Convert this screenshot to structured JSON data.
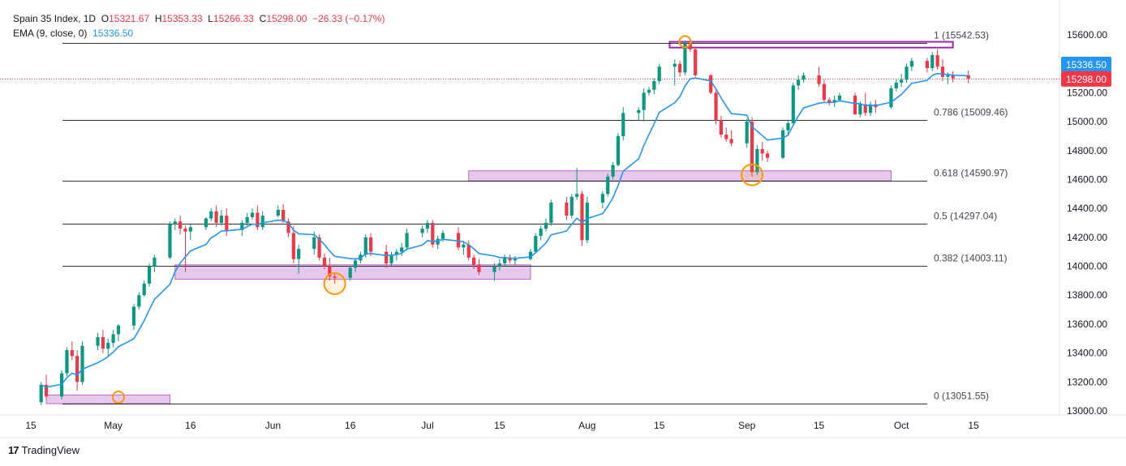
{
  "header": {
    "symbol": "Spain 35 Index, 1D",
    "o_label": "O",
    "o_value": "15321.67",
    "h_label": "H",
    "h_value": "15353.33",
    "l_label": "L",
    "l_value": "15266.33",
    "c_label": "C",
    "c_value": "15298.00",
    "change": "−26.33 (−0.17%)",
    "ema_label": "EMA (9, close, 0)",
    "ema_value": "15336.50"
  },
  "brand": {
    "logo": "17",
    "name": "TradingView"
  },
  "colors": {
    "up": "#089981",
    "down": "#f23645",
    "ema": "#2196f3",
    "fib_line": "#000000",
    "zone_fill": "#e1bee7",
    "zone_stroke": "#ba68c8",
    "top_zone_stroke": "#9c27b0",
    "circle": "#ff9800",
    "price_line": "#f23645"
  },
  "chart_data": {
    "type": "candlestick",
    "title": "Spain 35 Index, 1D",
    "ylim": [
      12960,
      15700
    ],
    "y_ticks": [
      13000,
      13200,
      13400,
      13600,
      13800,
      14000,
      14200,
      14400,
      14600,
      14800,
      15000,
      15200,
      15400,
      15600
    ],
    "x_ticks": [
      {
        "label": "15",
        "day": 0
      },
      {
        "label": "May",
        "day": 16
      },
      {
        "label": "16",
        "day": 31
      },
      {
        "label": "Jun",
        "day": 47
      },
      {
        "label": "16",
        "day": 62
      },
      {
        "label": "Jul",
        "day": 77
      },
      {
        "label": "15",
        "day": 91
      },
      {
        "label": "Aug",
        "day": 108
      },
      {
        "label": "15",
        "day": 122
      },
      {
        "label": "Sep",
        "day": 139
      },
      {
        "label": "15",
        "day": 153
      },
      {
        "label": "Oct",
        "day": 169
      },
      {
        "label": "15",
        "day": 183
      }
    ],
    "fib_levels": [
      {
        "label": "1 (15542.53)",
        "value": 15542.53
      },
      {
        "label": "0.786 (15009.46)",
        "value": 15009.46
      },
      {
        "label": "0.618 (14590.97)",
        "value": 14590.97
      },
      {
        "label": "0.5 (14297.04)",
        "value": 14297.04
      },
      {
        "label": "0.382 (14003.11)",
        "value": 14003.11
      },
      {
        "label": "0 (13051.55)",
        "value": 13051.55
      }
    ],
    "zones": [
      {
        "day_start": 3,
        "day_end": 27,
        "low": 13050,
        "high": 13110
      },
      {
        "day_start": 28,
        "day_end": 97,
        "low": 13910,
        "high": 14010
      },
      {
        "day_start": 85,
        "day_end": 167,
        "low": 14590,
        "high": 14660
      },
      {
        "day_start": 124,
        "day_end": 179,
        "low": 15512,
        "high": 15552
      }
    ],
    "circles": [
      {
        "day": 17,
        "value": 13095,
        "size": "small"
      },
      {
        "day": 59,
        "value": 13880,
        "size": "large"
      },
      {
        "day": 127,
        "value": 15553,
        "size": "small"
      },
      {
        "day": 140,
        "value": 14632,
        "size": "large"
      }
    ],
    "last_price": 15298.0,
    "last_price_label": "15298.00",
    "ema_last_label": "15336.50",
    "candles": [
      [
        2,
        13060,
        13200,
        13040,
        13180
      ],
      [
        3,
        13180,
        13250,
        13080,
        13100
      ],
      [
        6,
        13100,
        13280,
        13080,
        13260
      ],
      [
        7,
        13260,
        13440,
        13240,
        13420
      ],
      [
        8,
        13420,
        13480,
        13350,
        13380
      ],
      [
        9,
        13380,
        13420,
        13140,
        13200
      ],
      [
        10,
        13200,
        13480,
        13180,
        13450
      ],
      [
        13,
        13450,
        13540,
        13420,
        13510
      ],
      [
        14,
        13510,
        13560,
        13400,
        13430
      ],
      [
        15,
        13430,
        13500,
        13380,
        13470
      ],
      [
        16,
        13470,
        13560,
        13440,
        13530
      ],
      [
        17,
        13530,
        13600,
        13480,
        13590
      ],
      [
        20,
        13590,
        13740,
        13560,
        13720
      ],
      [
        21,
        13720,
        13820,
        13700,
        13800
      ],
      [
        22,
        13800,
        13900,
        13790,
        13880
      ],
      [
        23,
        13880,
        14020,
        13860,
        14000
      ],
      [
        24,
        14000,
        14080,
        13960,
        14060
      ],
      [
        27,
        14060,
        14310,
        14050,
        14290
      ],
      [
        28,
        14290,
        14330,
        14250,
        14310
      ],
      [
        29,
        14310,
        14350,
        14220,
        14260
      ],
      [
        30,
        14260,
        14280,
        13960,
        14240
      ],
      [
        31,
        14240,
        14290,
        14180,
        14270
      ],
      [
        34,
        14270,
        14340,
        14250,
        14330
      ],
      [
        35,
        14330,
        14400,
        14310,
        14380
      ],
      [
        36,
        14380,
        14420,
        14270,
        14300
      ],
      [
        37,
        14300,
        14390,
        14280,
        14350
      ],
      [
        38,
        14350,
        14400,
        14210,
        14250
      ],
      [
        41,
        14250,
        14320,
        14210,
        14300
      ],
      [
        42,
        14300,
        14370,
        14280,
        14340
      ],
      [
        43,
        14340,
        14400,
        14320,
        14370
      ],
      [
        44,
        14370,
        14420,
        14250,
        14270
      ],
      [
        45,
        14270,
        14380,
        14250,
        14350
      ],
      [
        48,
        14350,
        14420,
        14340,
        14390
      ],
      [
        49,
        14390,
        14430,
        14300,
        14310
      ],
      [
        50,
        14310,
        14330,
        14200,
        14230
      ],
      [
        51,
        14230,
        14280,
        14020,
        14050
      ],
      [
        52,
        14050,
        14150,
        13950,
        14120
      ],
      [
        55,
        14120,
        14240,
        14080,
        14200
      ],
      [
        56,
        14200,
        14220,
        14040,
        14060
      ],
      [
        57,
        14060,
        14090,
        13980,
        14000
      ],
      [
        58,
        14000,
        14060,
        13900,
        13930
      ],
      [
        59,
        13930,
        13950,
        13880,
        13920
      ],
      [
        62,
        13920,
        14000,
        13900,
        13990
      ],
      [
        63,
        13990,
        14060,
        13960,
        14040
      ],
      [
        64,
        14040,
        14100,
        14020,
        14080
      ],
      [
        65,
        14080,
        14220,
        14060,
        14200
      ],
      [
        66,
        14200,
        14230,
        14070,
        14100
      ],
      [
        69,
        14100,
        14150,
        13990,
        14020
      ],
      [
        70,
        14020,
        14100,
        14000,
        14080
      ],
      [
        71,
        14080,
        14120,
        14040,
        14100
      ],
      [
        72,
        14100,
        14160,
        14070,
        14130
      ],
      [
        73,
        14130,
        14260,
        14110,
        14230
      ],
      [
        76,
        14230,
        14280,
        14200,
        14260
      ],
      [
        77,
        14260,
        14320,
        14230,
        14300
      ],
      [
        78,
        14300,
        14320,
        14130,
        14150
      ],
      [
        79,
        14150,
        14210,
        14120,
        14190
      ],
      [
        80,
        14190,
        14250,
        14170,
        14230
      ],
      [
        83,
        14230,
        14270,
        14110,
        14130
      ],
      [
        84,
        14130,
        14170,
        14080,
        14150
      ],
      [
        85,
        14150,
        14180,
        14040,
        14060
      ],
      [
        86,
        14060,
        14080,
        13980,
        14010
      ],
      [
        87,
        14010,
        14050,
        13940,
        13960
      ],
      [
        90,
        13960,
        14020,
        13900,
        14000
      ],
      [
        91,
        14000,
        14050,
        13970,
        14020
      ],
      [
        92,
        14020,
        14080,
        14000,
        14060
      ],
      [
        93,
        14060,
        14080,
        14020,
        14040
      ],
      [
        94,
        14040,
        14070,
        14010,
        14050
      ],
      [
        97,
        14050,
        14120,
        14040,
        14100
      ],
      [
        98,
        14100,
        14230,
        14090,
        14210
      ],
      [
        99,
        14210,
        14280,
        14180,
        14260
      ],
      [
        100,
        14260,
        14330,
        14240,
        14300
      ],
      [
        101,
        14300,
        14460,
        14280,
        14440
      ],
      [
        104,
        14440,
        14480,
        14320,
        14350
      ],
      [
        105,
        14350,
        14500,
        14330,
        14480
      ],
      [
        106,
        14480,
        14680,
        14460,
        14500
      ],
      [
        107,
        14500,
        14520,
        14140,
        14180
      ],
      [
        108,
        14180,
        14480,
        14160,
        14440
      ],
      [
        111,
        14440,
        14520,
        14400,
        14500
      ],
      [
        112,
        14500,
        14640,
        14480,
        14620
      ],
      [
        113,
        14620,
        14720,
        14600,
        14700
      ],
      [
        114,
        14700,
        14920,
        14690,
        14900
      ],
      [
        115,
        14900,
        15100,
        14870,
        15060
      ],
      [
        118,
        15060,
        15100,
        15010,
        15080
      ],
      [
        119,
        15080,
        15230,
        15000,
        15200
      ],
      [
        120,
        15200,
        15240,
        15180,
        15220
      ],
      [
        121,
        15220,
        15300,
        15190,
        15280
      ],
      [
        122,
        15280,
        15400,
        15260,
        15380
      ],
      [
        125,
        15380,
        15430,
        15250,
        15400
      ],
      [
        126,
        15400,
        15420,
        15310,
        15340
      ],
      [
        127,
        15340,
        15560,
        15320,
        15540
      ],
      [
        128,
        15540,
        15560,
        15480,
        15500
      ],
      [
        129,
        15500,
        15520,
        15310,
        15320
      ],
      [
        132,
        15320,
        15330,
        15190,
        15200
      ],
      [
        133,
        15200,
        15220,
        14980,
        15010
      ],
      [
        134,
        15010,
        15040,
        14890,
        14910
      ],
      [
        135,
        14910,
        14960,
        14860,
        14880
      ],
      [
        136,
        14880,
        14940,
        14830,
        14850
      ],
      [
        139,
        14850,
        15020,
        14820,
        15000
      ],
      [
        140,
        15000,
        15030,
        14620,
        14650
      ],
      [
        141,
        14650,
        14840,
        14630,
        14810
      ],
      [
        142,
        14810,
        14860,
        14730,
        14780
      ],
      [
        143,
        14780,
        14800,
        14720,
        14750
      ],
      [
        146,
        14750,
        14960,
        14740,
        14940
      ],
      [
        147,
        14940,
        15010,
        14900,
        14990
      ],
      [
        148,
        14990,
        15270,
        14970,
        15250
      ],
      [
        149,
        15250,
        15320,
        15220,
        15290
      ],
      [
        150,
        15290,
        15340,
        15270,
        15320
      ],
      [
        153,
        15320,
        15380,
        15240,
        15260
      ],
      [
        154,
        15260,
        15290,
        15130,
        15150
      ],
      [
        155,
        15150,
        15170,
        15110,
        15130
      ],
      [
        156,
        15130,
        15180,
        15100,
        15150
      ],
      [
        157,
        15150,
        15200,
        15140,
        15180
      ],
      [
        160,
        15180,
        15200,
        15050,
        15050
      ],
      [
        161,
        15050,
        15140,
        15030,
        15120
      ],
      [
        162,
        15120,
        15200,
        15040,
        15060
      ],
      [
        163,
        15060,
        15140,
        15040,
        15120
      ],
      [
        164,
        15120,
        15150,
        15060,
        15100
      ],
      [
        167,
        15100,
        15250,
        15090,
        15230
      ],
      [
        168,
        15230,
        15290,
        15210,
        15270
      ],
      [
        169,
        15270,
        15330,
        15240,
        15290
      ],
      [
        170,
        15290,
        15400,
        15270,
        15380
      ],
      [
        171,
        15380,
        15440,
        15350,
        15420
      ],
      [
        174,
        15420,
        15440,
        15340,
        15370
      ],
      [
        175,
        15370,
        15480,
        15350,
        15460
      ],
      [
        176,
        15460,
        15500,
        15360,
        15380
      ],
      [
        177,
        15380,
        15430,
        15280,
        15310
      ],
      [
        178,
        15310,
        15340,
        15260,
        15320
      ],
      [
        179,
        15320,
        15350,
        15270,
        15300
      ],
      [
        182,
        15321.67,
        15353.33,
        15266.33,
        15298.0
      ]
    ]
  }
}
